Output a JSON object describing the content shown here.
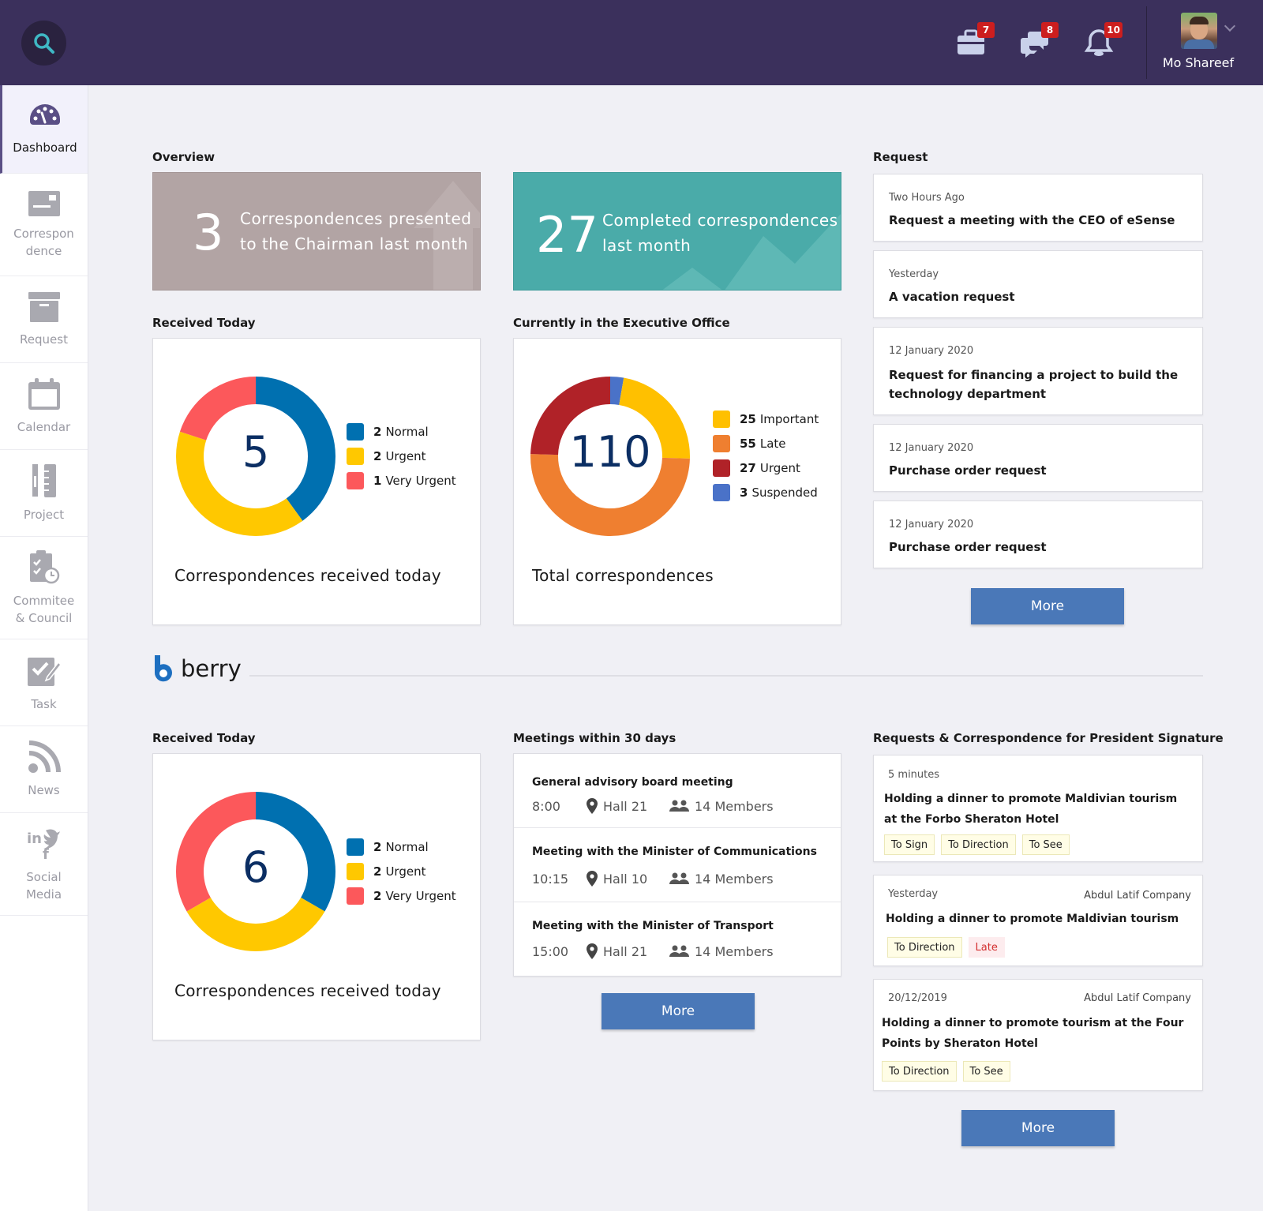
{
  "header": {
    "badges": {
      "briefcase": "7",
      "chat": "8",
      "bell": "10"
    },
    "user_name": "Mo Shareef"
  },
  "sidebar": {
    "items": [
      {
        "label": "Dashboard",
        "icon": "dashboard-icon",
        "active": true
      },
      {
        "label": "Correspon\ndence",
        "icon": "correspondence-icon"
      },
      {
        "label": "Request",
        "icon": "request-icon"
      },
      {
        "label": "Calendar",
        "icon": "calendar-icon"
      },
      {
        "label": "Project",
        "icon": "project-icon"
      },
      {
        "label": "Commitee\n& Council",
        "icon": "committee-icon"
      },
      {
        "label": "Task",
        "icon": "task-icon"
      },
      {
        "label": "News",
        "icon": "news-icon"
      },
      {
        "label": "Social\nMedia",
        "icon": "social-media-icon"
      }
    ]
  },
  "overview": {
    "title": "Overview",
    "tile1": {
      "number": "3",
      "text": "Correspondences presented\nto the Chairman last month"
    },
    "tile2": {
      "number": "27",
      "text": "Completed correspondences\nlast month"
    }
  },
  "received_today": {
    "title": "Received Today",
    "total": "5",
    "caption": "Correspondences received today",
    "legend": [
      {
        "count": "2",
        "label": "Normal",
        "color": "#0070b0"
      },
      {
        "count": "2",
        "label": "Urgent",
        "color": "#ffc800"
      },
      {
        "count": "1",
        "label": "Very Urgent",
        "color": "#fc585b"
      }
    ]
  },
  "executive_office": {
    "title": "Currently in the Executive Office",
    "total": "110",
    "caption": "Total correspondences",
    "legend": [
      {
        "count": "25",
        "label": "Important",
        "color": "#ffc000"
      },
      {
        "count": "55",
        "label": "Late",
        "color": "#ef7f30"
      },
      {
        "count": "27",
        "label": "Urgent",
        "color": "#b02228"
      },
      {
        "count": "3",
        "label": "Suspended",
        "color": "#4a72c8"
      }
    ]
  },
  "requests": {
    "title": "Request",
    "items": [
      {
        "time": "Two Hours Ago",
        "title": "Request a meeting with the CEO of eSense"
      },
      {
        "time": "Yesterday",
        "title": "A vacation request"
      },
      {
        "time": "12 January 2020",
        "title": "Request for financing a project to build the technology department"
      },
      {
        "time": "12 January 2020",
        "title": "Purchase order request"
      },
      {
        "time": "12 January 2020",
        "title": "Purchase order request"
      }
    ],
    "more_label": "More"
  },
  "berry": {
    "name": "berry"
  },
  "received_today_2": {
    "title": "Received Today",
    "total": "6",
    "caption": "Correspondences received today",
    "legend": [
      {
        "count": "2",
        "label": "Normal",
        "color": "#0070b0"
      },
      {
        "count": "2",
        "label": "Urgent",
        "color": "#ffc800"
      },
      {
        "count": "2",
        "label": "Very Urgent",
        "color": "#fc585b"
      }
    ]
  },
  "meetings": {
    "title": "Meetings within 30 days",
    "items": [
      {
        "title": "General advisory board meeting",
        "time": "8:00",
        "location": "Hall 21",
        "members": "14 Members"
      },
      {
        "title": "Meeting with the Minister of Communications",
        "time": "10:15",
        "location": "Hall 10",
        "members": "14 Members"
      },
      {
        "title": "Meeting with the Minister of Transport",
        "time": "15:00",
        "location": "Hall 21",
        "members": "14 Members"
      }
    ],
    "more_label": "More"
  },
  "president_signature": {
    "title": "Requests & Correspondence for President Signature",
    "items": [
      {
        "time": "5 minutes",
        "company": "",
        "title": "Holding a dinner to promote Maldivian tourism at the Forbo Sheraton Hotel",
        "tags": [
          "To Sign",
          "To Direction",
          "To See"
        ]
      },
      {
        "time": "Yesterday",
        "company": "Abdul Latif Company",
        "title": "Holding a dinner to promote Maldivian tourism",
        "tags": [
          "To Direction",
          "Late"
        ]
      },
      {
        "time": "20/12/2019",
        "company": "Abdul Latif Company",
        "title": "Holding a dinner to promote tourism at the Four Points by Sheraton Hotel",
        "tags": [
          "To Direction",
          "To See"
        ]
      }
    ],
    "more_label": "More"
  },
  "chart_data": [
    {
      "type": "pie",
      "categories": [
        "Normal",
        "Urgent",
        "Very Urgent"
      ],
      "values": [
        2,
        2,
        1
      ],
      "colors": [
        "#0070b0",
        "#ffc800",
        "#fc585b"
      ]
    },
    {
      "type": "pie",
      "categories": [
        "Suspended",
        "Important",
        "Late",
        "Urgent"
      ],
      "values": [
        3,
        25,
        55,
        27
      ],
      "colors": [
        "#4a72c8",
        "#ffc000",
        "#ef7f30",
        "#b02228"
      ]
    },
    {
      "type": "pie",
      "categories": [
        "Normal",
        "Urgent",
        "Very Urgent"
      ],
      "values": [
        2,
        2,
        2
      ],
      "colors": [
        "#0070b0",
        "#ffc800",
        "#fc585b"
      ]
    }
  ]
}
